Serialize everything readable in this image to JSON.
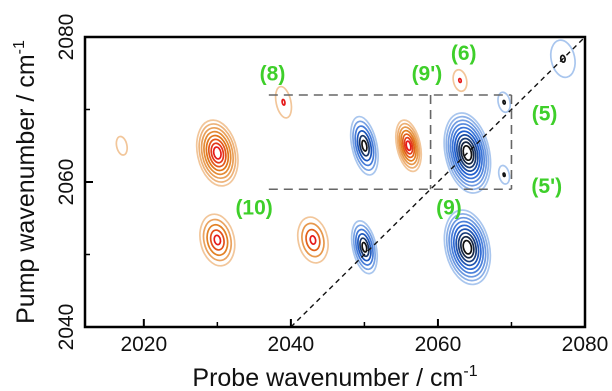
{
  "chart_data": {
    "type": "contour",
    "xlabel": "Probe wavenumber / cm",
    "xlabel_sup": "-1",
    "ylabel": "Pump wavenumber / cm",
    "ylabel_sup": "-1",
    "xlim": [
      2012,
      2080
    ],
    "ylim": [
      2040,
      2080
    ],
    "x_ticks": [
      2020,
      2040,
      2060,
      2080
    ],
    "y_ticks": [
      2040,
      2060,
      2080
    ],
    "x_tick_labels": [
      "2020",
      "2040",
      "2060",
      "2080"
    ],
    "y_tick_labels": [
      "2040",
      "2060",
      "2080"
    ],
    "diagonal": {
      "from": [
        2040,
        2040
      ],
      "to": [
        2080,
        2080
      ],
      "style": "dashed"
    },
    "guide_box": {
      "x": [
        2037,
        2070
      ],
      "y": [
        2059,
        2072
      ],
      "x_divider": 2059,
      "style": "dashed"
    },
    "colors": {
      "negative": "#1f5fd0",
      "negative_light": "#a9c6ee",
      "negative_core": "#111111",
      "positive": "#e07a1a",
      "positive_light": "#f2c69a",
      "positive_core": "#e51a1a",
      "label": "#3ecf2a"
    },
    "peaks": [
      {
        "x": 2030,
        "y": 2064,
        "sign": "positive",
        "levels": 8,
        "rx": 2.7,
        "ry": 4.6
      },
      {
        "x": 2030,
        "y": 2052,
        "sign": "positive",
        "levels": 5,
        "rx": 2.3,
        "ry": 3.6
      },
      {
        "x": 2056,
        "y": 2065,
        "sign": "positive",
        "levels": 7,
        "rx": 1.6,
        "ry": 3.6
      },
      {
        "x": 2043,
        "y": 2052,
        "sign": "positive",
        "levels": 4,
        "rx": 2.0,
        "ry": 3.2
      },
      {
        "x": 2039,
        "y": 2071,
        "sign": "positive",
        "levels": 2,
        "rx": 1.0,
        "ry": 2.2
      },
      {
        "x": 2063,
        "y": 2074,
        "sign": "positive",
        "levels": 2,
        "rx": 0.9,
        "ry": 1.5
      },
      {
        "x": 2017,
        "y": 2065,
        "sign": "positive",
        "levels": 1,
        "rx": 0.7,
        "ry": 1.3
      },
      {
        "x": 2050,
        "y": 2065,
        "sign": "negative",
        "levels": 6,
        "rx": 1.7,
        "ry": 4.1
      },
      {
        "x": 2050,
        "y": 2051,
        "sign": "negative",
        "levels": 6,
        "rx": 1.6,
        "ry": 3.7
      },
      {
        "x": 2064,
        "y": 2064,
        "sign": "negative",
        "levels": 10,
        "rx": 3.0,
        "ry": 5.6
      },
      {
        "x": 2064,
        "y": 2051,
        "sign": "negative",
        "levels": 9,
        "rx": 3.0,
        "ry": 5.2
      },
      {
        "x": 2069,
        "y": 2071,
        "sign": "negative",
        "levels": 2,
        "rx": 0.8,
        "ry": 1.4
      },
      {
        "x": 2069,
        "y": 2061,
        "sign": "negative",
        "levels": 2,
        "rx": 0.7,
        "ry": 1.3
      },
      {
        "x": 2077,
        "y": 2077,
        "sign": "negative",
        "levels": 2,
        "rx": 1.6,
        "ry": 2.6
      }
    ],
    "annotations": [
      {
        "text": "(8)",
        "x": 2037.5,
        "y": 2074
      },
      {
        "text": "(9')",
        "x": 2058.5,
        "y": 2074
      },
      {
        "text": "(6)",
        "x": 2063.5,
        "y": 2076.8
      },
      {
        "text": "(5)",
        "x": 2074.5,
        "y": 2068.5
      },
      {
        "text": "(5')",
        "x": 2074.8,
        "y": 2058.5
      },
      {
        "text": "(10)",
        "x": 2035,
        "y": 2055.5
      },
      {
        "text": "(9)",
        "x": 2061.5,
        "y": 2055.5
      }
    ]
  }
}
